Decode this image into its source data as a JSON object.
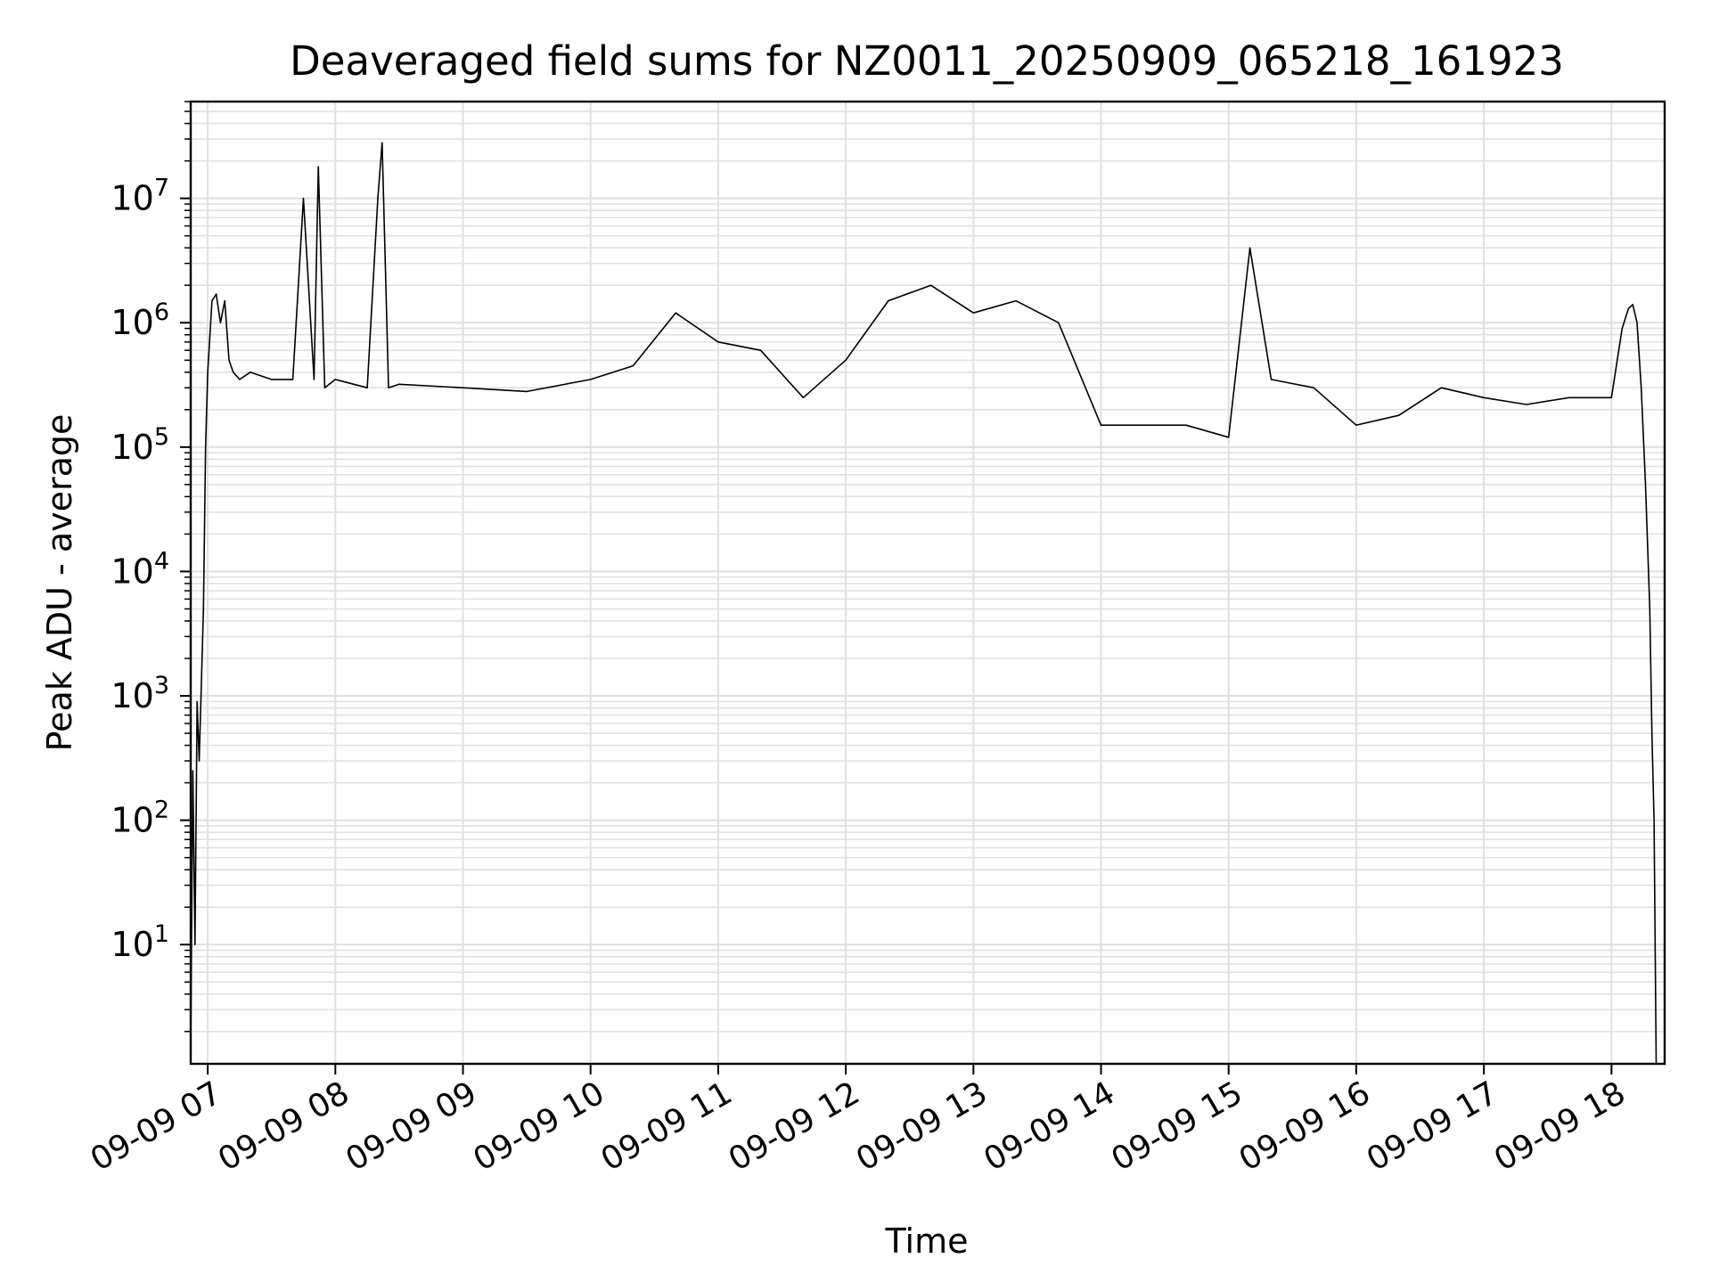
{
  "chart_data": {
    "type": "line",
    "title": "Deaveraged field sums for NZ0011_20250909_065218_161923",
    "xlabel": "Time",
    "ylabel": "Peak ADU - average",
    "yscale": "log",
    "ylim": [
      1.1,
      60000000
    ],
    "xlim": [
      "2025-09-09 06:52",
      "2025-09-09 18:25"
    ],
    "grid": true,
    "line_color": "#000000",
    "grid_color": "#e0e0e0",
    "x_tick_labels": [
      "09-09 07",
      "09-09 08",
      "09-09 09",
      "09-09 10",
      "09-09 11",
      "09-09 12",
      "09-09 13",
      "09-09 14",
      "09-09 15",
      "09-09 16",
      "09-09 17",
      "09-09 18"
    ],
    "y_tick_labels": [
      {
        "base": "10",
        "exp": "1"
      },
      {
        "base": "10",
        "exp": "2"
      },
      {
        "base": "10",
        "exp": "3"
      },
      {
        "base": "10",
        "exp": "4"
      },
      {
        "base": "10",
        "exp": "5"
      },
      {
        "base": "10",
        "exp": "6"
      },
      {
        "base": "10",
        "exp": "7"
      }
    ],
    "series": [
      {
        "x": [
          "2025-09-09 06:52",
          "2025-09-09 06:53",
          "2025-09-09 06:54",
          "2025-09-09 06:55",
          "2025-09-09 06:56",
          "2025-09-09 06:57",
          "2025-09-09 06:58",
          "2025-09-09 06:59",
          "2025-09-09 07:00",
          "2025-09-09 07:02",
          "2025-09-09 07:04",
          "2025-09-09 07:06",
          "2025-09-09 07:08",
          "2025-09-09 07:10",
          "2025-09-09 07:12",
          "2025-09-09 07:15",
          "2025-09-09 07:20",
          "2025-09-09 07:30",
          "2025-09-09 07:40",
          "2025-09-09 07:45",
          "2025-09-09 07:50",
          "2025-09-09 07:52",
          "2025-09-09 07:55",
          "2025-09-09 08:00",
          "2025-09-09 08:15",
          "2025-09-09 08:20",
          "2025-09-09 08:22",
          "2025-09-09 08:25",
          "2025-09-09 08:30",
          "2025-09-09 09:00",
          "2025-09-09 09:30",
          "2025-09-09 10:00",
          "2025-09-09 10:20",
          "2025-09-09 10:40",
          "2025-09-09 11:00",
          "2025-09-09 11:20",
          "2025-09-09 11:40",
          "2025-09-09 12:00",
          "2025-09-09 12:20",
          "2025-09-09 12:40",
          "2025-09-09 13:00",
          "2025-09-09 13:20",
          "2025-09-09 13:40",
          "2025-09-09 14:00",
          "2025-09-09 14:20",
          "2025-09-09 14:40",
          "2025-09-09 15:00",
          "2025-09-09 15:10",
          "2025-09-09 15:20",
          "2025-09-09 15:40",
          "2025-09-09 16:00",
          "2025-09-09 16:20",
          "2025-09-09 16:40",
          "2025-09-09 17:00",
          "2025-09-09 17:20",
          "2025-09-09 17:40",
          "2025-09-09 18:00",
          "2025-09-09 18:05",
          "2025-09-09 18:08",
          "2025-09-09 18:10",
          "2025-09-09 18:12",
          "2025-09-09 18:14",
          "2025-09-09 18:16",
          "2025-09-09 18:18",
          "2025-09-09 18:19",
          "2025-09-09 18:20",
          "2025-09-09 18:21"
        ],
        "y": [
          1.5,
          250,
          10,
          900,
          300,
          1200,
          5000,
          100000,
          400000,
          1500000,
          1700000,
          1000000,
          1500000,
          500000,
          400000,
          350000,
          400000,
          350000,
          350000,
          10000000,
          350000,
          18000000,
          300000,
          350000,
          300000,
          10000000,
          28000000,
          300000,
          320000,
          300000,
          280000,
          350000,
          450000,
          1200000,
          700000,
          600000,
          250000,
          500000,
          1500000,
          2000000,
          1200000,
          1500000,
          1000000,
          150000,
          150000,
          150000,
          120000,
          4000000,
          350000,
          300000,
          150000,
          180000,
          300000,
          250000,
          220000,
          250000,
          250000,
          900000,
          1300000,
          1400000,
          1000000,
          300000,
          50000,
          5000,
          500,
          100,
          1.1
        ]
      }
    ]
  }
}
